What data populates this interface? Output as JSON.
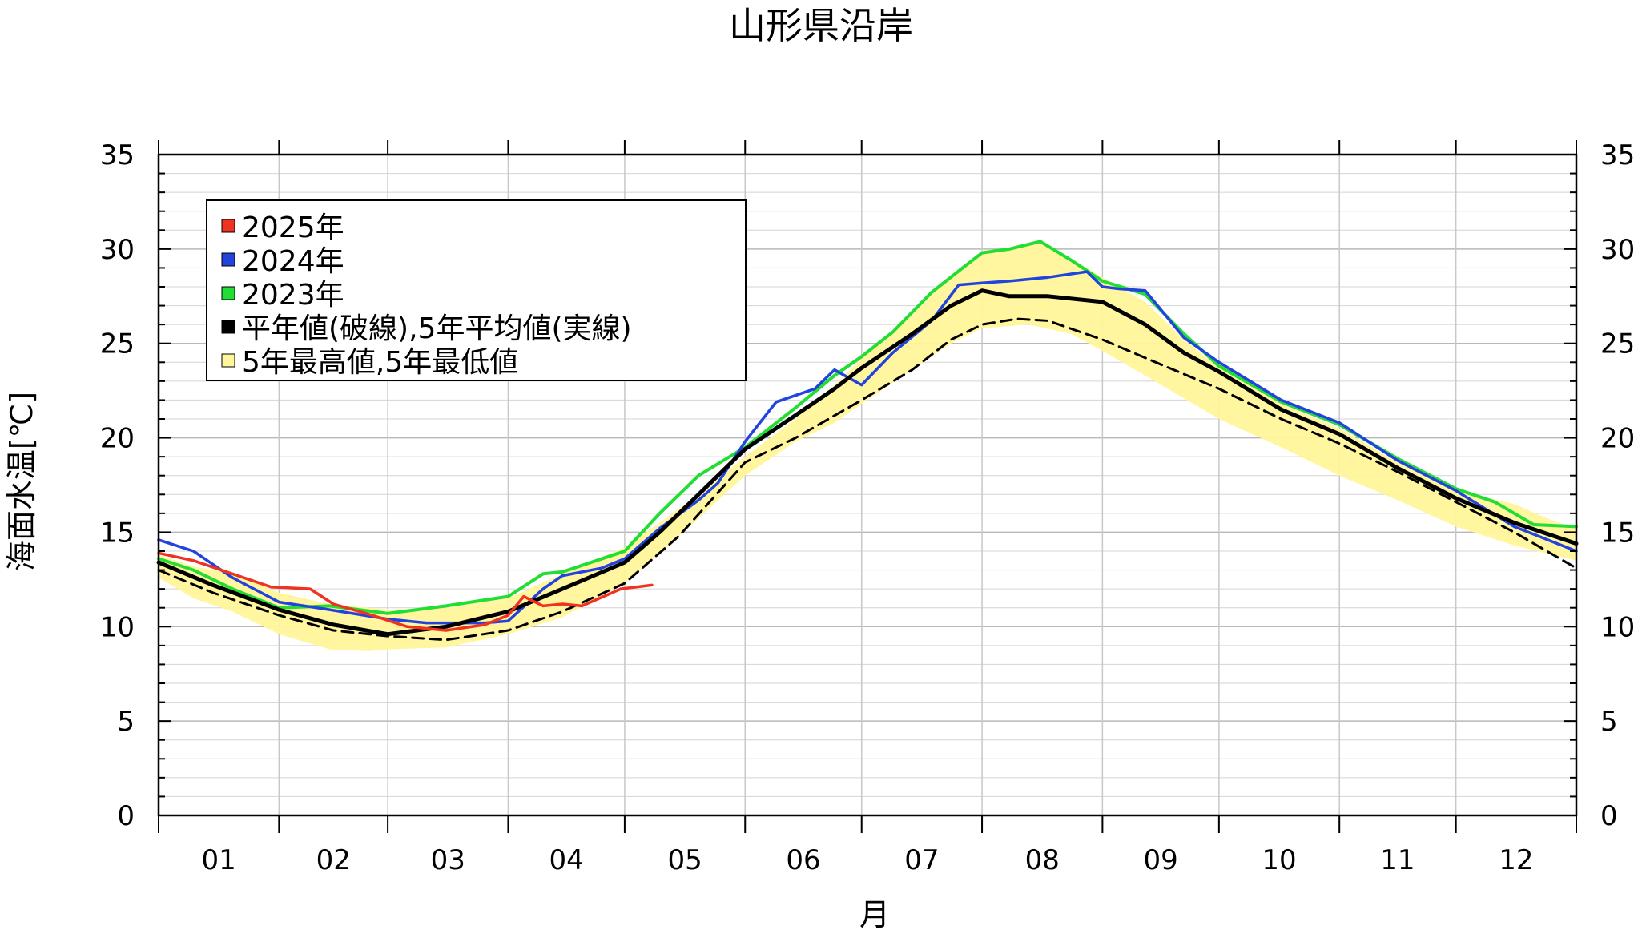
{
  "chart_data": {
    "type": "line",
    "title": "山形県沿岸",
    "xlabel": "月",
    "ylabel": "海面水温[℃]",
    "ylim": [
      0,
      35
    ],
    "yticks": [
      0,
      5,
      10,
      15,
      20,
      25,
      30,
      35
    ],
    "xlim": [
      1,
      366
    ],
    "month_labels": [
      "01",
      "02",
      "03",
      "04",
      "05",
      "06",
      "07",
      "08",
      "09",
      "10",
      "11",
      "12"
    ],
    "month_starts": [
      1,
      32,
      60,
      91,
      121,
      152,
      182,
      213,
      244,
      274,
      305,
      335,
      366
    ],
    "grid": true,
    "legend_position": "top-left",
    "colors": {
      "y2025": "#ee3322",
      "y2024": "#2244dd",
      "y2023": "#22dd33",
      "normal": "#000000",
      "band": "#fff59a"
    },
    "legend": [
      {
        "label": "2025年",
        "color": "#ee3322",
        "key": "y2025"
      },
      {
        "label": "2024年",
        "color": "#2244dd",
        "key": "y2024"
      },
      {
        "label": "2023年",
        "color": "#22dd33",
        "key": "y2023"
      },
      {
        "label": "平年値(破線),5年平均値(実線)",
        "color": "#000000",
        "key": "normal"
      },
      {
        "label": "5年最高値,5年最低値",
        "color": "#fff59a",
        "key": "band"
      }
    ],
    "series": {
      "band_max": {
        "x": [
          1,
          10,
          20,
          32,
          45,
          60,
          75,
          91,
          105,
          121,
          130,
          140,
          152,
          165,
          175,
          182,
          195,
          205,
          213,
          220,
          228,
          236,
          244,
          255,
          265,
          274,
          290,
          305,
          320,
          335,
          350,
          360,
          366
        ],
        "values": [
          13.8,
          13.2,
          12.8,
          11.8,
          11.2,
          10.9,
          11.0,
          11.5,
          12.8,
          14.2,
          15.5,
          17.0,
          19.0,
          21.0,
          22.8,
          24.2,
          26.5,
          28.6,
          29.9,
          30.0,
          30.3,
          29.5,
          28.5,
          27.2,
          25.2,
          23.7,
          21.8,
          20.5,
          18.7,
          17.2,
          16.5,
          15.6,
          15.2
        ]
      },
      "band_min": {
        "x": [
          1,
          10,
          20,
          32,
          45,
          55,
          60,
          75,
          91,
          105,
          121,
          135,
          152,
          165,
          175,
          182,
          195,
          205,
          213,
          225,
          236,
          244,
          255,
          274,
          290,
          305,
          320,
          335,
          350,
          366
        ],
        "values": [
          12.6,
          11.5,
          10.8,
          9.6,
          8.8,
          8.7,
          8.8,
          8.9,
          9.6,
          10.5,
          12.3,
          14.8,
          18.0,
          19.8,
          20.8,
          21.8,
          23.6,
          25.0,
          25.8,
          26.0,
          25.5,
          24.6,
          23.3,
          21.0,
          19.5,
          18.0,
          16.7,
          15.3,
          14.3,
          13.5
        ]
      },
      "normal": {
        "x": [
          1,
          15,
          32,
          46,
          60,
          75,
          91,
          105,
          121,
          135,
          152,
          165,
          182,
          195,
          205,
          213,
          222,
          230,
          244,
          260,
          274,
          290,
          305,
          320,
          335,
          350,
          366
        ],
        "values": [
          13.0,
          11.8,
          10.6,
          9.8,
          9.5,
          9.3,
          9.8,
          10.8,
          12.3,
          14.8,
          18.7,
          20.0,
          22.0,
          23.6,
          25.2,
          26.0,
          26.3,
          26.2,
          25.2,
          23.8,
          22.6,
          21.0,
          19.7,
          18.2,
          16.6,
          15.0,
          13.1
        ]
      },
      "avg5": {
        "x": [
          1,
          15,
          32,
          46,
          60,
          75,
          91,
          105,
          121,
          130,
          140,
          152,
          165,
          175,
          182,
          195,
          205,
          213,
          220,
          230,
          244,
          255,
          265,
          274,
          290,
          305,
          320,
          335,
          350,
          366
        ],
        "values": [
          13.4,
          12.2,
          10.9,
          10.1,
          9.6,
          10.0,
          10.8,
          12.0,
          13.4,
          15.0,
          17.0,
          19.4,
          21.2,
          22.6,
          23.7,
          25.5,
          27.0,
          27.8,
          27.5,
          27.5,
          27.2,
          26.0,
          24.5,
          23.5,
          21.5,
          20.2,
          18.4,
          16.8,
          15.5,
          14.4
        ]
      },
      "y2023": {
        "x": [
          1,
          10,
          20,
          32,
          45,
          60,
          75,
          91,
          100,
          105,
          121,
          130,
          140,
          152,
          165,
          175,
          182,
          190,
          200,
          208,
          213,
          220,
          228,
          236,
          244,
          255,
          265,
          274,
          290,
          305,
          320,
          335,
          345,
          355,
          366
        ],
        "values": [
          13.6,
          13.0,
          12.0,
          11.0,
          11.1,
          10.7,
          11.1,
          11.6,
          12.8,
          12.9,
          14.0,
          16.0,
          18.0,
          19.5,
          21.6,
          23.3,
          24.3,
          25.6,
          27.7,
          29.0,
          29.8,
          30.0,
          30.4,
          29.4,
          28.3,
          27.6,
          25.5,
          23.8,
          21.9,
          20.7,
          18.9,
          17.3,
          16.6,
          15.4,
          15.3
        ]
      },
      "y2024": {
        "x": [
          1,
          10,
          20,
          32,
          45,
          60,
          70,
          85,
          91,
          100,
          105,
          115,
          121,
          130,
          140,
          145,
          152,
          160,
          170,
          175,
          182,
          190,
          200,
          207,
          213,
          220,
          230,
          240,
          244,
          248,
          255,
          265,
          274,
          290,
          305,
          320,
          335,
          350,
          366
        ],
        "values": [
          14.6,
          14.0,
          12.6,
          11.3,
          10.9,
          10.4,
          10.2,
          10.2,
          10.3,
          12.0,
          12.7,
          13.1,
          13.6,
          15.2,
          16.7,
          17.6,
          19.8,
          21.9,
          22.6,
          23.6,
          22.8,
          24.5,
          26.2,
          28.1,
          28.2,
          28.3,
          28.5,
          28.8,
          28.0,
          27.9,
          27.8,
          25.3,
          24.0,
          22.0,
          20.8,
          18.8,
          17.2,
          15.3,
          14.0
        ]
      },
      "y2025": {
        "x": [
          1,
          10,
          20,
          30,
          40,
          46,
          56,
          65,
          75,
          85,
          91,
          95,
          100,
          105,
          110,
          120,
          128
        ],
        "values": [
          13.9,
          13.5,
          12.8,
          12.1,
          12.0,
          11.2,
          10.6,
          10.0,
          9.8,
          10.1,
          10.6,
          11.6,
          11.1,
          11.2,
          11.1,
          12.0,
          12.2
        ]
      }
    }
  }
}
